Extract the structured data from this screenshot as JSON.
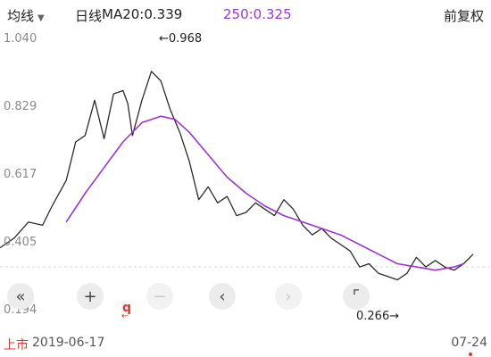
{
  "toolbar": {
    "indicator_type": "均线",
    "period": "日线",
    "ma20_label": "MA20:0.339",
    "ma250_label": "250:0.325",
    "adjust": "前复权"
  },
  "colors": {
    "ma250": "#9b35d6",
    "price": "#2b2b2b",
    "accent_red": "#e5342d",
    "axis_text": "#8a8a8a"
  },
  "annotations": {
    "high": "←0.968",
    "low": "0.266→"
  },
  "footer": {
    "listing_label": "上市",
    "start_date": "2019-06-17",
    "end_date": "07-24"
  },
  "controls": {
    "fq_label": "q",
    "icons": [
      "double-left-icon",
      "plus-icon",
      "minus-icon",
      "chevron-left-icon",
      "chevron-right-icon",
      "fullscreen-icon"
    ]
  },
  "chart_data": {
    "type": "line",
    "y_tick_labels": [
      "1.040",
      "0.829",
      "0.617",
      "0.405",
      "0.194"
    ],
    "ylim": [
      0.194,
      1.04
    ],
    "grid": false,
    "series": [
      {
        "x": [
          0,
          0.03,
          0.06,
          0.09,
          0.11,
          0.14,
          0.16,
          0.18,
          0.2,
          0.22,
          0.24,
          0.26,
          0.27,
          0.28,
          0.3,
          0.32,
          0.34,
          0.36,
          0.38,
          0.4,
          0.42,
          0.44,
          0.46,
          0.48,
          0.5,
          0.52,
          0.54,
          0.56,
          0.58,
          0.6,
          0.62,
          0.64,
          0.66,
          0.68,
          0.7,
          0.72,
          0.74,
          0.76,
          0.78,
          0.8,
          0.82,
          0.84,
          0.86,
          0.88,
          0.9,
          0.92,
          0.94,
          0.96,
          0.98,
          1.0
        ],
        "values": [
          0.39,
          0.42,
          0.47,
          0.46,
          0.52,
          0.6,
          0.72,
          0.74,
          0.85,
          0.73,
          0.87,
          0.88,
          0.84,
          0.74,
          0.85,
          0.94,
          0.91,
          0.82,
          0.75,
          0.66,
          0.54,
          0.58,
          0.53,
          0.55,
          0.49,
          0.5,
          0.53,
          0.51,
          0.49,
          0.54,
          0.51,
          0.46,
          0.43,
          0.45,
          0.42,
          0.4,
          0.38,
          0.33,
          0.34,
          0.31,
          0.3,
          0.29,
          0.31,
          0.36,
          0.33,
          0.35,
          0.33,
          0.32,
          0.34,
          0.37
        ]
      },
      {
        "name": "MA250",
        "x": [
          0.14,
          0.18,
          0.22,
          0.26,
          0.3,
          0.34,
          0.37,
          0.4,
          0.44,
          0.48,
          0.52,
          0.56,
          0.6,
          0.64,
          0.68,
          0.72,
          0.76,
          0.8,
          0.84,
          0.88,
          0.92,
          0.96,
          0.98
        ],
        "values": [
          0.47,
          0.56,
          0.64,
          0.72,
          0.78,
          0.8,
          0.79,
          0.75,
          0.68,
          0.61,
          0.56,
          0.52,
          0.49,
          0.47,
          0.45,
          0.43,
          0.4,
          0.37,
          0.34,
          0.33,
          0.32,
          0.33,
          0.34
        ]
      }
    ]
  }
}
